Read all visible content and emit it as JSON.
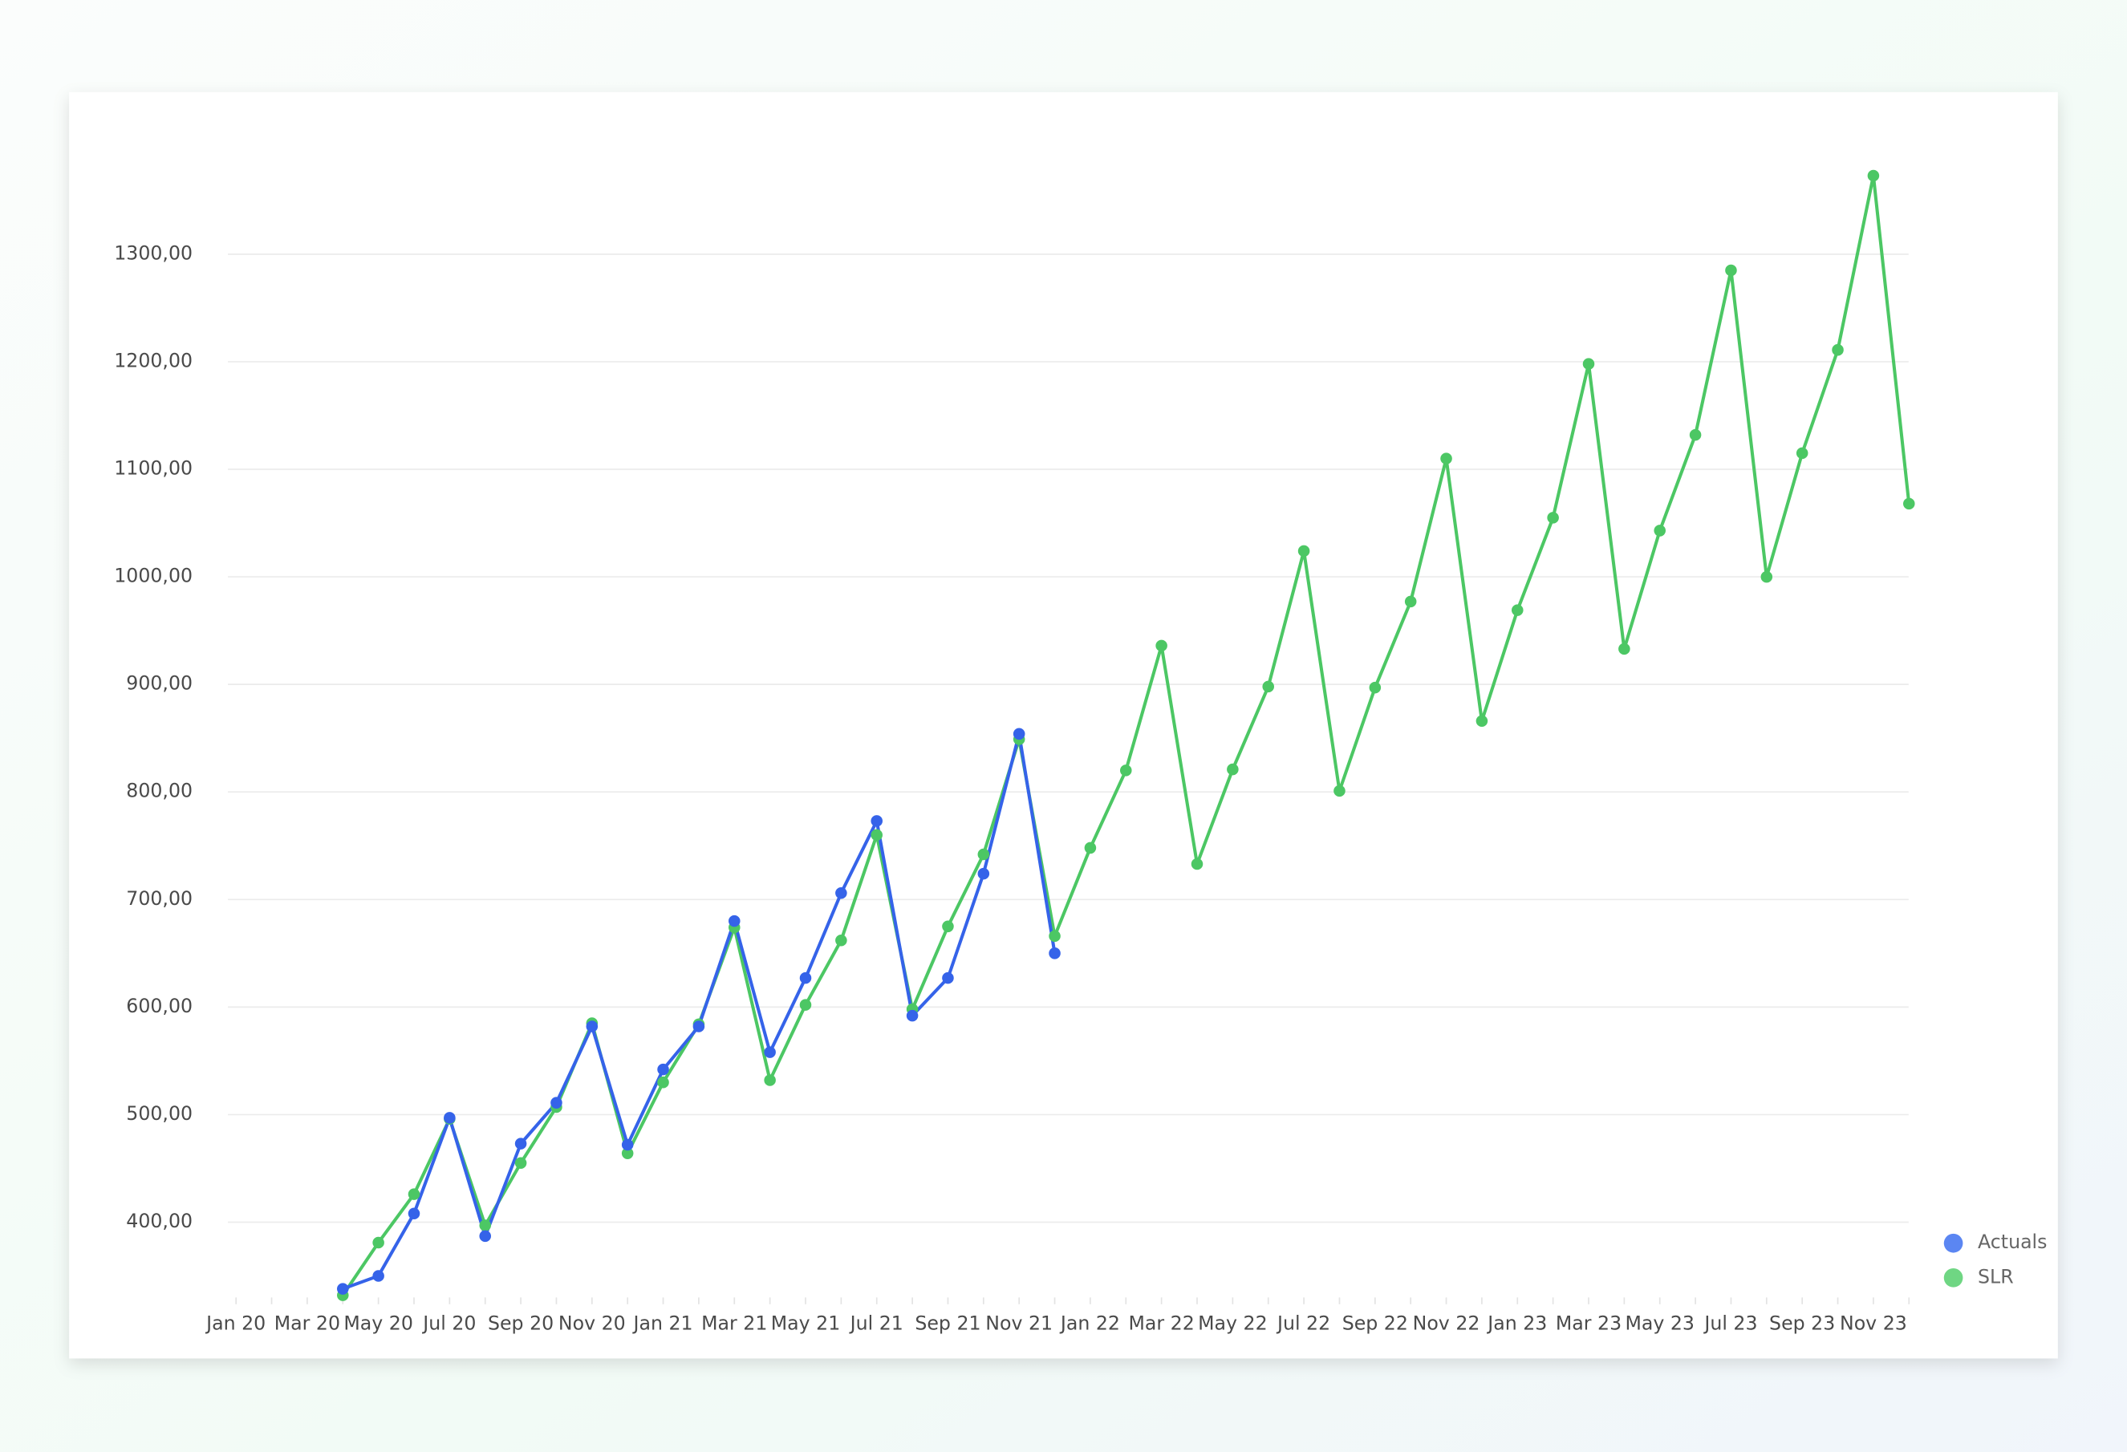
{
  "chart_data": {
    "type": "line",
    "categories": [
      "Jan 20",
      null,
      "Mar 20",
      null,
      "May 20",
      null,
      "Jul 20",
      null,
      "Sep 20",
      null,
      "Nov 20",
      null,
      "Jan 21",
      null,
      "Mar 21",
      null,
      "May 21",
      null,
      "Jul 21",
      null,
      "Sep 21",
      null,
      "Nov 21",
      null,
      "Jan 22",
      null,
      "Mar 22",
      null,
      "May 22",
      null,
      "Jul 22",
      null,
      "Sep 22",
      null,
      "Nov 22",
      null,
      "Jan 23",
      null,
      "Mar 23",
      null,
      "May 23",
      null,
      "Jul 23",
      null,
      "Sep 23",
      null,
      "Nov 23",
      null
    ],
    "series": [
      {
        "name": "Actuals",
        "color": "#3563e9",
        "legend_color": "#5b86f2",
        "values": [
          null,
          null,
          null,
          338,
          350,
          408,
          497,
          387,
          473,
          511,
          582,
          472,
          542,
          582,
          680,
          558,
          627,
          706,
          773,
          592,
          627,
          724,
          854,
          650,
          null,
          null,
          null,
          null,
          null,
          null,
          null,
          null,
          null,
          null,
          null,
          null,
          null,
          null,
          null,
          null,
          null,
          null,
          null,
          null,
          null,
          null,
          null,
          null
        ]
      },
      {
        "name": "SLR",
        "color": "#4cc764",
        "legend_color": "#6fd683",
        "values": [
          null,
          null,
          null,
          332,
          381,
          426,
          496,
          397,
          455,
          507,
          585,
          464,
          530,
          584,
          674,
          532,
          602,
          662,
          760,
          598,
          675,
          742,
          849,
          666,
          748,
          820,
          936,
          733,
          821,
          898,
          1024,
          801,
          897,
          977,
          1110,
          866,
          969,
          1055,
          1198,
          933,
          1043,
          1132,
          1285,
          1000,
          1115,
          1211,
          1373,
          1068
        ]
      }
    ],
    "ylim": [
      330,
      1400
    ],
    "yticks": [
      {
        "value": 400,
        "label": "400,00"
      },
      {
        "value": 500,
        "label": "500,00"
      },
      {
        "value": 600,
        "label": "600,00"
      },
      {
        "value": 700,
        "label": "700,00"
      },
      {
        "value": 800,
        "label": "800,00"
      },
      {
        "value": 900,
        "label": "900,00"
      },
      {
        "value": 1000,
        "label": "1000,00"
      },
      {
        "value": 1100,
        "label": "1100,00"
      },
      {
        "value": 1200,
        "label": "1200,00"
      },
      {
        "value": 1300,
        "label": "1300,00"
      }
    ],
    "grid": true,
    "legend": "bottom-right"
  }
}
